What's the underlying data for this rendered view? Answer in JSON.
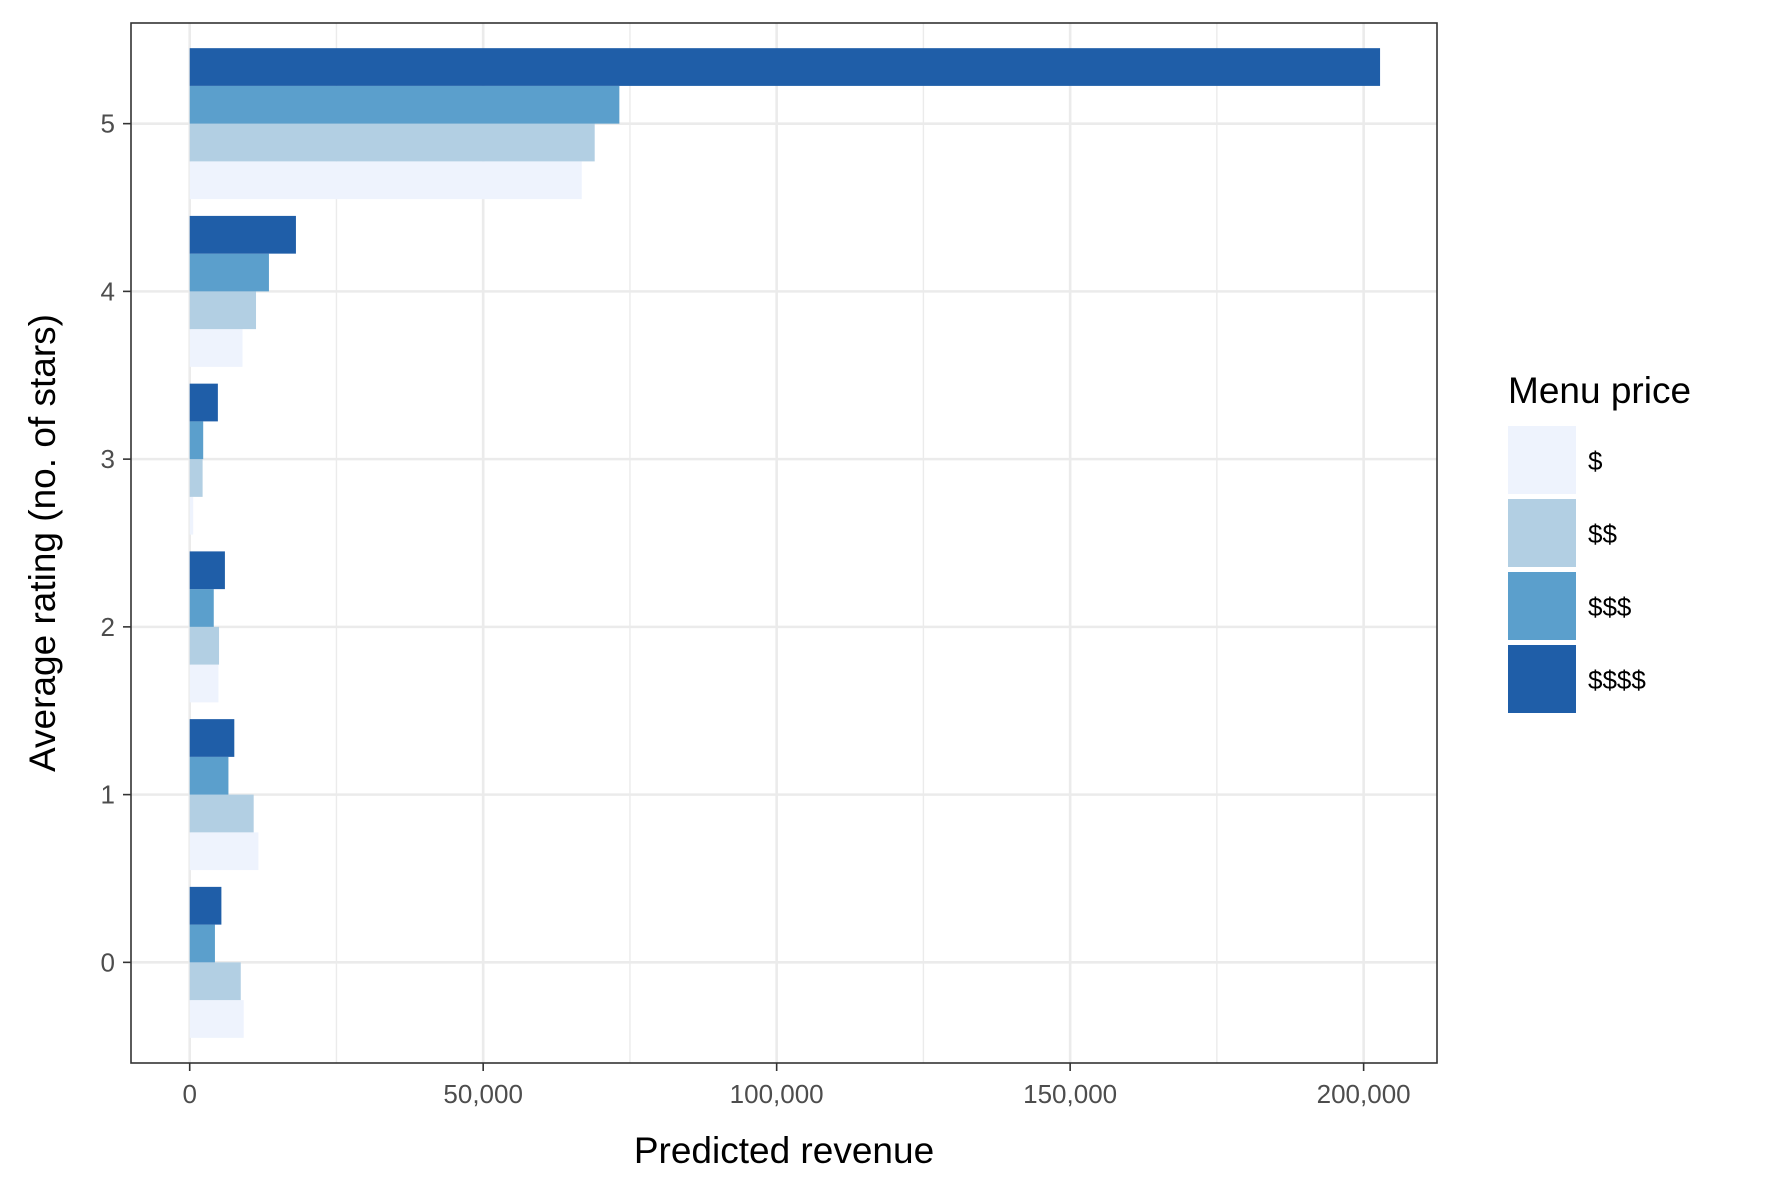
{
  "chart_data": {
    "type": "bar",
    "orientation": "horizontal",
    "grouped": true,
    "title": "",
    "xlabel": "Predicted revenue",
    "ylabel": "Average rating (no. of stars)",
    "categories": [
      "0",
      "1",
      "2",
      "3",
      "4",
      "5"
    ],
    "xlim": [
      -10000,
      212500
    ],
    "x_ticks": [
      0,
      50000,
      100000,
      150000,
      200000
    ],
    "x_tick_labels": [
      "0",
      "50,000",
      "100,000",
      "150,000",
      "200,000"
    ],
    "grid": true,
    "legend": {
      "title": "Menu price",
      "position": "right"
    },
    "series": [
      {
        "name": "$",
        "color": "#eef3fd",
        "values": [
          9200,
          11700,
          4900,
          600,
          9000,
          66800
        ]
      },
      {
        "name": "$$",
        "color": "#b2cfe3",
        "values": [
          8700,
          10900,
          5000,
          2200,
          11300,
          69000
        ]
      },
      {
        "name": "$$$",
        "color": "#5b9fcc",
        "values": [
          4300,
          6600,
          4100,
          2300,
          13500,
          73200
        ]
      },
      {
        "name": "$$$$",
        "color": "#1f5ea8",
        "values": [
          5400,
          7600,
          6000,
          4800,
          18100,
          202800
        ]
      }
    ]
  }
}
